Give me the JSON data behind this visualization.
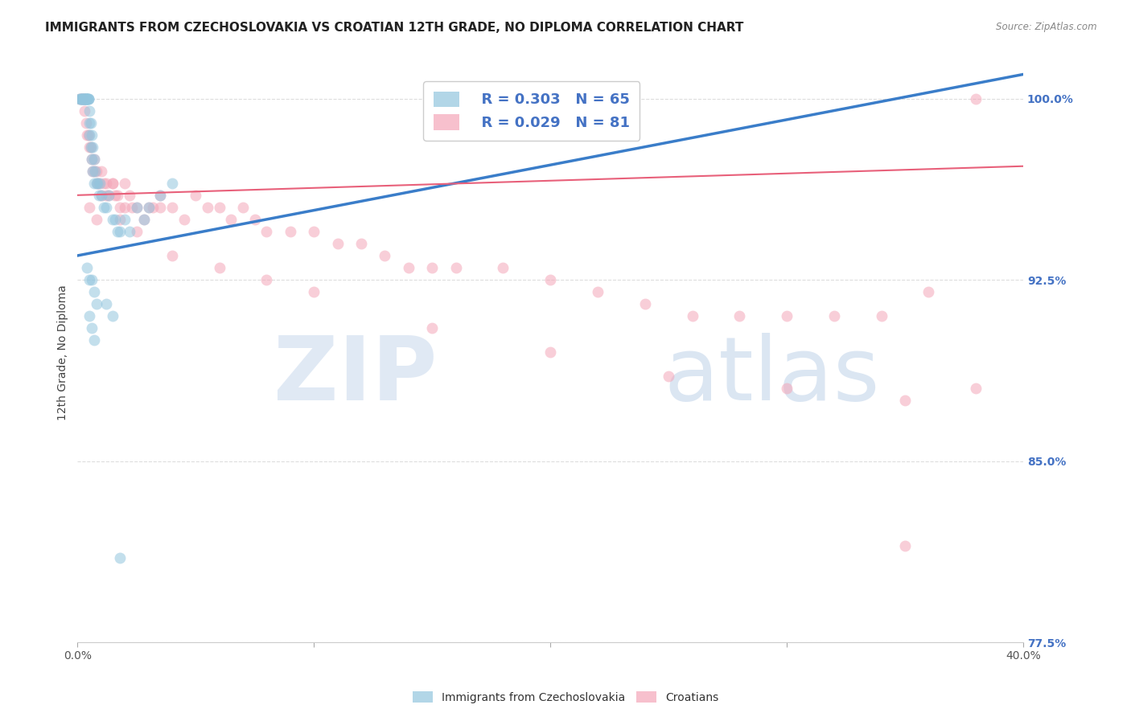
{
  "title": "IMMIGRANTS FROM CZECHOSLOVAKIA VS CROATIAN 12TH GRADE, NO DIPLOMA CORRELATION CHART",
  "source": "Source: ZipAtlas.com",
  "ylabel_label": "12th Grade, No Diploma",
  "legend_blue_label": "Immigrants from Czechoslovakia",
  "legend_pink_label": "Croatians",
  "R_blue": 0.303,
  "N_blue": 65,
  "R_pink": 0.029,
  "N_pink": 81,
  "x_min": 0.0,
  "x_max": 40.0,
  "y_min": 77.5,
  "y_max": 101.5,
  "blue_color": "#92c5de",
  "pink_color": "#f4a6b8",
  "blue_line_color": "#3a7dc9",
  "pink_line_color": "#e8607a",
  "axis_label_color": "#4472c4",
  "watermark_ZIP_color": "#d0dff0",
  "watermark_atlas_color": "#b8d0e8",
  "background_color": "#ffffff",
  "grid_color": "#dddddd",
  "blue_scatter_x": [
    0.1,
    0.1,
    0.15,
    0.15,
    0.2,
    0.2,
    0.2,
    0.25,
    0.25,
    0.3,
    0.3,
    0.3,
    0.3,
    0.35,
    0.35,
    0.35,
    0.4,
    0.4,
    0.4,
    0.4,
    0.45,
    0.45,
    0.45,
    0.5,
    0.5,
    0.5,
    0.55,
    0.55,
    0.6,
    0.6,
    0.65,
    0.65,
    0.7,
    0.7,
    0.75,
    0.8,
    0.85,
    0.9,
    0.95,
    1.0,
    1.1,
    1.2,
    1.3,
    1.5,
    1.6,
    1.7,
    1.8,
    2.0,
    2.2,
    2.5,
    2.8,
    3.0,
    3.5,
    4.0,
    0.4,
    0.5,
    0.6,
    0.7,
    0.8,
    0.5,
    0.6,
    0.7,
    1.2,
    1.5,
    1.8
  ],
  "blue_scatter_y": [
    100.0,
    100.0,
    100.0,
    100.0,
    100.0,
    100.0,
    100.0,
    100.0,
    100.0,
    100.0,
    100.0,
    100.0,
    100.0,
    100.0,
    100.0,
    100.0,
    100.0,
    100.0,
    100.0,
    100.0,
    100.0,
    100.0,
    100.0,
    99.5,
    99.0,
    98.5,
    99.0,
    98.0,
    98.5,
    97.5,
    98.0,
    97.0,
    97.5,
    96.5,
    97.0,
    96.5,
    96.5,
    96.0,
    96.5,
    96.0,
    95.5,
    95.5,
    96.0,
    95.0,
    95.0,
    94.5,
    94.5,
    95.0,
    94.5,
    95.5,
    95.0,
    95.5,
    96.0,
    96.5,
    93.0,
    92.5,
    92.5,
    92.0,
    91.5,
    91.0,
    90.5,
    90.0,
    91.5,
    91.0,
    81.0
  ],
  "pink_scatter_x": [
    0.1,
    0.15,
    0.2,
    0.25,
    0.3,
    0.35,
    0.4,
    0.45,
    0.5,
    0.55,
    0.6,
    0.65,
    0.7,
    0.7,
    0.8,
    0.85,
    0.9,
    1.0,
    1.0,
    1.1,
    1.2,
    1.3,
    1.5,
    1.5,
    1.6,
    1.7,
    1.8,
    2.0,
    2.0,
    2.2,
    2.3,
    2.5,
    2.8,
    3.0,
    3.2,
    3.5,
    3.5,
    4.0,
    4.5,
    5.0,
    5.5,
    6.0,
    6.5,
    7.0,
    7.5,
    8.0,
    9.0,
    10.0,
    11.0,
    12.0,
    13.0,
    14.0,
    15.0,
    16.0,
    18.0,
    20.0,
    22.0,
    24.0,
    26.0,
    28.0,
    30.0,
    32.0,
    34.0,
    36.0,
    38.0,
    0.5,
    0.8,
    1.2,
    1.8,
    2.5,
    4.0,
    6.0,
    8.0,
    10.0,
    15.0,
    20.0,
    25.0,
    30.0,
    35.0,
    38.0,
    35.0
  ],
  "pink_scatter_y": [
    100.0,
    100.0,
    100.0,
    100.0,
    99.5,
    99.0,
    98.5,
    98.5,
    98.0,
    98.0,
    97.5,
    97.0,
    97.5,
    97.0,
    97.0,
    96.5,
    96.5,
    97.0,
    96.0,
    96.5,
    96.5,
    96.0,
    96.5,
    96.5,
    96.0,
    96.0,
    95.5,
    95.5,
    96.5,
    96.0,
    95.5,
    95.5,
    95.0,
    95.5,
    95.5,
    95.5,
    96.0,
    95.5,
    95.0,
    96.0,
    95.5,
    95.5,
    95.0,
    95.5,
    95.0,
    94.5,
    94.5,
    94.5,
    94.0,
    94.0,
    93.5,
    93.0,
    93.0,
    93.0,
    93.0,
    92.5,
    92.0,
    91.5,
    91.0,
    91.0,
    91.0,
    91.0,
    91.0,
    92.0,
    100.0,
    95.5,
    95.0,
    96.0,
    95.0,
    94.5,
    93.5,
    93.0,
    92.5,
    92.0,
    90.5,
    89.5,
    88.5,
    88.0,
    87.5,
    88.0,
    81.5
  ],
  "blue_line_x0": 0.0,
  "blue_line_y0": 93.5,
  "blue_line_x1": 40.0,
  "blue_line_y1": 101.0,
  "pink_line_x0": 0.0,
  "pink_line_y0": 96.0,
  "pink_line_x1": 40.0,
  "pink_line_y1": 97.2
}
